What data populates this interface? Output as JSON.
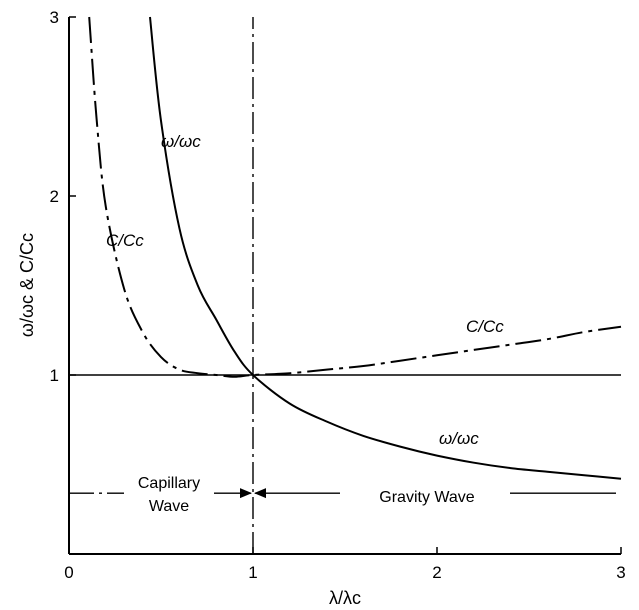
{
  "chart_data": {
    "type": "line",
    "xlabel": "λ/λc",
    "ylabel": "ω/ωc & C/Cc",
    "xlim": [
      0,
      3
    ],
    "ylim": [
      0,
      3
    ],
    "x_ticks": [
      "0",
      "1",
      "2",
      "3"
    ],
    "y_ticks": [
      "1",
      "2",
      "3"
    ],
    "grid": false,
    "series": [
      {
        "name": "ω/ωc",
        "line_style": "solid",
        "x": [
          0.44,
          0.5,
          0.6,
          0.7,
          0.8,
          0.9,
          1.0,
          1.2,
          1.4,
          1.6,
          1.8,
          2.0,
          2.2,
          2.4,
          2.6,
          2.8,
          3.0
        ],
        "y": [
          3.0,
          2.42,
          1.82,
          1.5,
          1.31,
          1.13,
          1.0,
          0.84,
          0.74,
          0.66,
          0.6,
          0.55,
          0.51,
          0.48,
          0.46,
          0.44,
          0.42
        ]
      },
      {
        "name": "C/Cc",
        "line_style": "dash-dot",
        "x": [
          0.11,
          0.15,
          0.2,
          0.3,
          0.4,
          0.5,
          0.6,
          0.7,
          0.8,
          0.9,
          1.0,
          1.2,
          1.4,
          1.6,
          1.8,
          2.0,
          2.2,
          2.4,
          2.6,
          2.8,
          3.0
        ],
        "y": [
          3.0,
          2.43,
          1.94,
          1.48,
          1.24,
          1.1,
          1.03,
          1.01,
          1.0,
          0.99,
          1.0,
          1.01,
          1.03,
          1.05,
          1.08,
          1.11,
          1.14,
          1.17,
          1.2,
          1.24,
          1.27
        ]
      }
    ],
    "reference_lines": [
      {
        "orientation": "horizontal",
        "value": 1,
        "line_style": "solid"
      },
      {
        "orientation": "vertical",
        "value": 1,
        "line_style": "dash-dot"
      }
    ],
    "annotations": {
      "omega_upper": "ω/ωc",
      "omega_lower": "ω/ωc",
      "c_left": "C/Cc",
      "c_right": "C/Cc",
      "capillary_line1": "Capillary",
      "capillary_line2": "Wave",
      "gravity": "Gravity Wave"
    },
    "regions": {
      "divider_value": 1,
      "indicator_level": 0.34
    }
  }
}
